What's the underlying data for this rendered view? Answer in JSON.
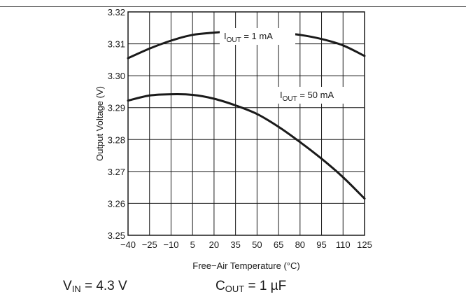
{
  "chart_data": {
    "type": "line",
    "xlabel": "Free−Air Temperature (°C)",
    "ylabel": "Output Voltage (V)",
    "xlim": [
      -40,
      125
    ],
    "ylim": [
      3.25,
      3.32
    ],
    "x_ticks": [
      "−40",
      "−25",
      "−10",
      "5",
      "20",
      "35",
      "50",
      "65",
      "80",
      "95",
      "110",
      "125"
    ],
    "y_ticks": [
      "3.25",
      "3.26",
      "3.27",
      "3.28",
      "3.29",
      "3.30",
      "3.31",
      "3.32"
    ],
    "grid": true,
    "series": [
      {
        "name": "I_OUT = 1 mA",
        "x": [
          -40,
          -25,
          -10,
          5,
          20,
          35,
          40,
          50,
          65,
          80,
          95,
          110,
          125
        ],
        "y": [
          3.3055,
          3.3085,
          3.311,
          3.3128,
          3.3135,
          3.314,
          3.3141,
          3.314,
          3.3135,
          3.3128,
          3.3115,
          3.3095,
          3.3062
        ]
      },
      {
        "name": "I_OUT = 50 mA",
        "x": [
          -40,
          -25,
          -10,
          5,
          20,
          35,
          50,
          65,
          80,
          95,
          110,
          125
        ],
        "y": [
          3.2922,
          3.2938,
          3.2942,
          3.294,
          3.2928,
          3.2907,
          3.288,
          3.284,
          3.2792,
          3.274,
          3.2682,
          3.2615
        ]
      }
    ],
    "series_labels": [
      {
        "main": "I",
        "sub": "OUT",
        "rest": " = 1 mA"
      },
      {
        "main": "I",
        "sub": "OUT",
        "rest": " = 50 mA"
      }
    ]
  },
  "conditions": [
    {
      "main": "V",
      "sub": "IN",
      "rest": " = 4.3 V"
    },
    {
      "main": "C",
      "sub": "OUT",
      "rest": " = 1 µF"
    }
  ]
}
